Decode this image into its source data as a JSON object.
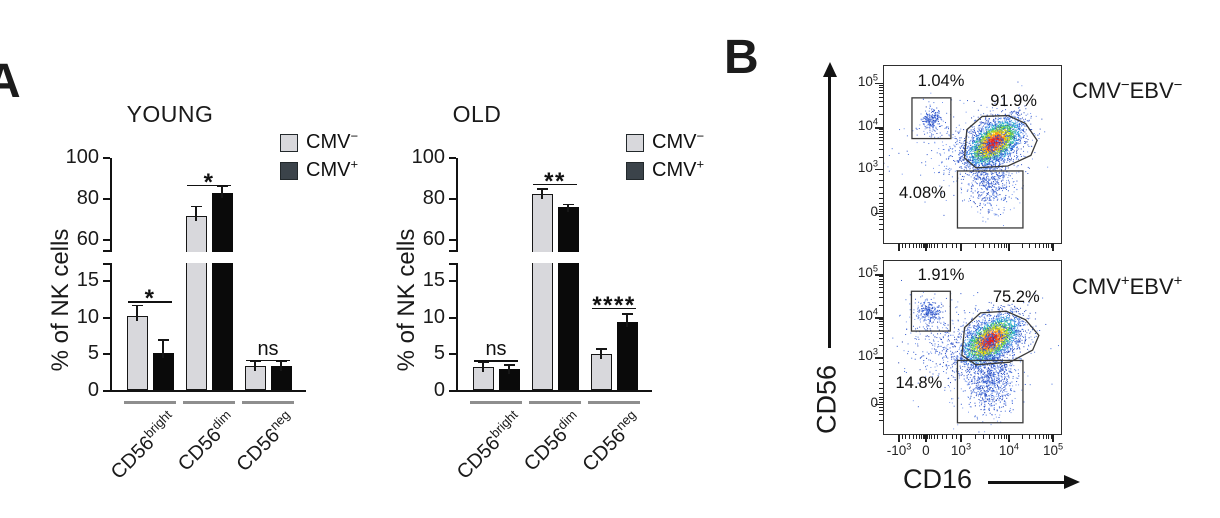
{
  "panels": {
    "a_label": "A",
    "b_label": "B"
  },
  "panel_b": {
    "xlabel": "CD16",
    "ylabel": "CD56",
    "xticks": [
      {
        "t": "-10",
        "s": "3",
        "p": 0.085
      },
      {
        "t": "0",
        "p": 0.237
      },
      {
        "t": "10",
        "s": "3",
        "p": 0.435
      },
      {
        "t": "10",
        "s": "4",
        "p": 0.706
      },
      {
        "t": "10",
        "s": "5",
        "p": 0.955
      }
    ]
  },
  "chart_data": [
    {
      "type": "bar",
      "title": "YOUNG",
      "ylabel": "% of NK cells",
      "categories": [
        {
          "base": "CD56",
          "sup": "bright"
        },
        {
          "base": "CD56",
          "sup": "dim"
        },
        {
          "base": "CD56",
          "sup": "neg"
        }
      ],
      "series": [
        {
          "base": "CMV",
          "sup": "−",
          "color": "#d8d8dc",
          "values": [
            10.0,
            71.5,
            3.2
          ],
          "errors": [
            1.4,
            4.5,
            0.6
          ]
        },
        {
          "base": "CMV",
          "sup": "+",
          "color": "#0a0a0a",
          "values": [
            5.0,
            83.0,
            3.2
          ],
          "errors": [
            1.7,
            3.0,
            0.6
          ]
        }
      ],
      "significance": [
        {
          "label": "*",
          "y": 12.3
        },
        {
          "label": "*",
          "y": 87.0
        },
        {
          "label": "ns",
          "y": 4.3
        }
      ],
      "axis": {
        "lower_range": [
          0,
          17.5
        ],
        "upper_range": [
          54,
          100
        ],
        "yticks_lower": [
          0,
          5,
          10,
          15
        ],
        "yticks_upper": [
          60,
          80,
          100
        ]
      }
    },
    {
      "type": "bar",
      "title": "OLD",
      "ylabel": "% of NK cells",
      "categories": [
        {
          "base": "CD56",
          "sup": "bright"
        },
        {
          "base": "CD56",
          "sup": "dim"
        },
        {
          "base": "CD56",
          "sup": "neg"
        }
      ],
      "series": [
        {
          "base": "CMV",
          "sup": "−",
          "color": "#d8d8dc",
          "values": [
            3.1,
            82.5,
            4.8
          ],
          "errors": [
            0.5,
            2.0,
            0.7
          ]
        },
        {
          "base": "CMV",
          "sup": "+",
          "color": "#0a0a0a",
          "values": [
            2.8,
            76.0,
            9.2
          ],
          "errors": [
            0.5,
            1.0,
            1.0
          ]
        }
      ],
      "significance": [
        {
          "label": "ns",
          "y": 4.2
        },
        {
          "label": "**",
          "y": 87.5
        },
        {
          "label": "****",
          "y": 11.4
        }
      ],
      "axis": {
        "lower_range": [
          0,
          17.5
        ],
        "upper_range": [
          54,
          100
        ],
        "yticks_lower": [
          0,
          5,
          10,
          15
        ],
        "yticks_upper": [
          60,
          80,
          100
        ]
      }
    },
    {
      "type": "scatter",
      "name": "flow-cmv-neg-ebv-neg",
      "label_segments": [
        [
          "CMV",
          "−"
        ],
        [
          "EBV",
          "−"
        ]
      ],
      "show_x_labels": false,
      "yticks": [
        {
          "t": "10",
          "s": "5",
          "p": 0.1
        },
        {
          "t": "10",
          "s": "4",
          "p": 0.35
        },
        {
          "t": "10",
          "s": "3",
          "p": 0.585
        },
        {
          "t": "0",
          "p": 0.835
        }
      ],
      "gates": [
        {
          "shape": "rect",
          "x0": 0.158,
          "y0": 0.18,
          "x1": 0.378,
          "y1": 0.41,
          "label": "1.04%",
          "lx": 0.19,
          "ly": 0.035
        },
        {
          "shape": "poly",
          "pts": [
            [
              0.455,
              0.52
            ],
            [
              0.468,
              0.36
            ],
            [
              0.555,
              0.285
            ],
            [
              0.7,
              0.28
            ],
            [
              0.8,
              0.325
            ],
            [
              0.865,
              0.42
            ],
            [
              0.83,
              0.505
            ],
            [
              0.7,
              0.565
            ],
            [
              0.52,
              0.575
            ]
          ],
          "label": "91.9%",
          "lx": 0.6,
          "ly": 0.145
        },
        {
          "shape": "rect",
          "x0": 0.415,
          "y0": 0.593,
          "x1": 0.785,
          "y1": 0.915,
          "label": "4.08%",
          "lx": 0.085,
          "ly": 0.665
        }
      ],
      "clusters": [
        {
          "kind": "heat",
          "cx": 0.62,
          "cy": 0.43,
          "sx": 0.085,
          "sy": 0.048,
          "rot": -38,
          "n": 2800
        },
        {
          "kind": "blue",
          "cx": 0.6,
          "cy": 0.445,
          "sx": 0.125,
          "sy": 0.085,
          "rot": -30,
          "n": 750
        },
        {
          "kind": "blue",
          "cx": 0.6,
          "cy": 0.66,
          "sx": 0.065,
          "sy": 0.085,
          "rot": 0,
          "n": 480
        },
        {
          "kind": "blue",
          "cx": 0.265,
          "cy": 0.295,
          "sx": 0.027,
          "sy": 0.028,
          "rot": 0,
          "n": 150
        },
        {
          "kind": "blue",
          "cx": 0.27,
          "cy": 0.31,
          "sx": 0.06,
          "sy": 0.055,
          "rot": 0,
          "n": 80
        },
        {
          "kind": "blue",
          "cx": 0.44,
          "cy": 0.47,
          "sx": 0.2,
          "sy": 0.16,
          "rot": 0,
          "n": 150
        }
      ]
    },
    {
      "type": "scatter",
      "name": "flow-cmv-pos-ebv-pos",
      "label_segments": [
        [
          "CMV",
          "+"
        ],
        [
          "EBV",
          "+"
        ]
      ],
      "show_x_labels": true,
      "yticks": [
        {
          "t": "10",
          "s": "5",
          "p": 0.08
        },
        {
          "t": "10",
          "s": "4",
          "p": 0.33
        },
        {
          "t": "10",
          "s": "3",
          "p": 0.56
        },
        {
          "t": "0",
          "p": 0.83
        }
      ],
      "gates": [
        {
          "shape": "rect",
          "x0": 0.155,
          "y0": 0.175,
          "x1": 0.375,
          "y1": 0.405,
          "label": "1.91%",
          "lx": 0.19,
          "ly": 0.03
        },
        {
          "shape": "poly",
          "pts": [
            [
              0.44,
              0.545
            ],
            [
              0.455,
              0.385
            ],
            [
              0.545,
              0.3
            ],
            [
              0.69,
              0.29
            ],
            [
              0.8,
              0.34
            ],
            [
              0.875,
              0.43
            ],
            [
              0.84,
              0.515
            ],
            [
              0.71,
              0.585
            ],
            [
              0.52,
              0.6
            ]
          ],
          "label": "75.2%",
          "lx": 0.615,
          "ly": 0.155
        },
        {
          "shape": "rect",
          "x0": 0.415,
          "y0": 0.575,
          "x1": 0.785,
          "y1": 0.935,
          "label": "14.8%",
          "lx": 0.065,
          "ly": 0.655
        }
      ],
      "clusters": [
        {
          "kind": "heat",
          "cx": 0.6,
          "cy": 0.455,
          "sx": 0.09,
          "sy": 0.05,
          "rot": -38,
          "n": 2600
        },
        {
          "kind": "blue",
          "cx": 0.59,
          "cy": 0.47,
          "sx": 0.125,
          "sy": 0.09,
          "rot": -30,
          "n": 800
        },
        {
          "kind": "blue",
          "cx": 0.6,
          "cy": 0.695,
          "sx": 0.07,
          "sy": 0.095,
          "rot": 0,
          "n": 800
        },
        {
          "kind": "blue",
          "cx": 0.255,
          "cy": 0.29,
          "sx": 0.03,
          "sy": 0.03,
          "rot": 0,
          "n": 170
        },
        {
          "kind": "blue",
          "cx": 0.26,
          "cy": 0.32,
          "sx": 0.06,
          "sy": 0.06,
          "rot": 0,
          "n": 90
        },
        {
          "kind": "blue",
          "cx": 0.3,
          "cy": 0.48,
          "sx": 0.1,
          "sy": 0.13,
          "rot": 0,
          "n": 160
        },
        {
          "kind": "blue",
          "cx": 0.45,
          "cy": 0.47,
          "sx": 0.2,
          "sy": 0.16,
          "rot": 0,
          "n": 120
        }
      ]
    }
  ]
}
